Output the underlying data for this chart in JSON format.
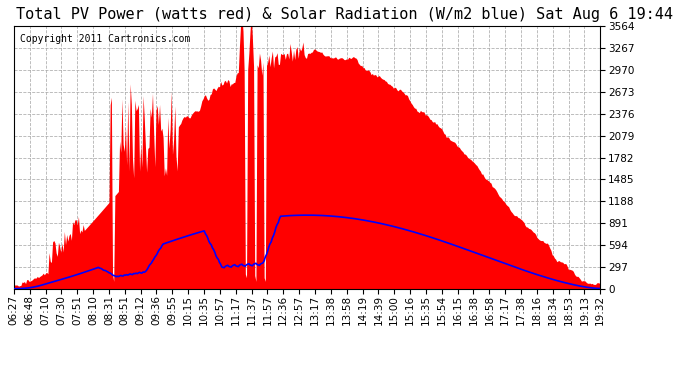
{
  "title": "Total PV Power (watts red) & Solar Radiation (W/m2 blue) Sat Aug 6 19:44",
  "copyright": "Copyright 2011 Cartronics.com",
  "background_color": "#ffffff",
  "plot_bg_color": "#ffffff",
  "grid_color": "#aaaaaa",
  "grid_style": "--",
  "red_fill_color": "red",
  "blue_line_color": "blue",
  "y_ticks": [
    0.0,
    297.0,
    594.0,
    891.1,
    1188.1,
    1485.1,
    1782.1,
    2079.1,
    2376.1,
    2673.2,
    2970.2,
    3267.2,
    3564.2
  ],
  "x_labels": [
    "06:27",
    "06:48",
    "07:10",
    "07:30",
    "07:51",
    "08:10",
    "08:31",
    "08:51",
    "09:12",
    "09:36",
    "09:55",
    "10:15",
    "10:35",
    "10:57",
    "11:17",
    "11:37",
    "11:57",
    "12:36",
    "12:57",
    "13:17",
    "13:38",
    "13:58",
    "14:19",
    "14:39",
    "15:00",
    "15:16",
    "15:35",
    "15:54",
    "16:15",
    "16:38",
    "16:58",
    "17:17",
    "17:38",
    "18:16",
    "18:34",
    "18:53",
    "19:13",
    "19:32"
  ],
  "ylim": [
    0,
    3564.2
  ],
  "title_fontsize": 11,
  "tick_fontsize": 7.5,
  "copyright_fontsize": 7
}
